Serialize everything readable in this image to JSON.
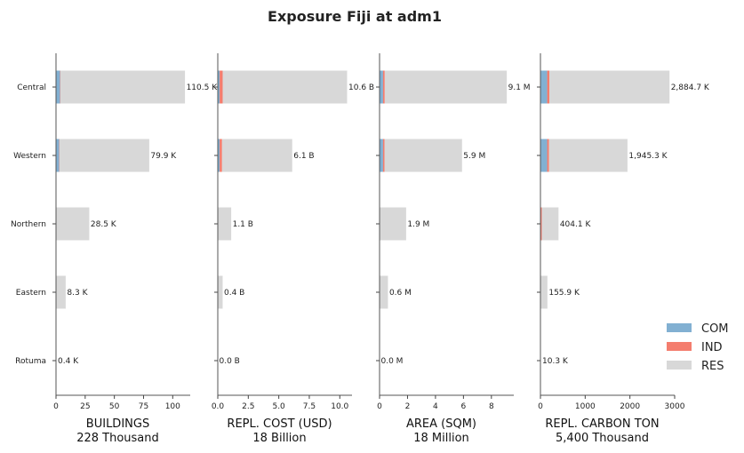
{
  "chart_data": {
    "type": "bar",
    "orientation": "horizontal",
    "stacked": true,
    "title": "Exposure Fiji at adm1",
    "categories": [
      "Central",
      "Western",
      "Northern",
      "Eastern",
      "Rotuma"
    ],
    "legend": {
      "placement": "right",
      "entries": [
        {
          "name": "COM",
          "color": "#82b0d2"
        },
        {
          "name": "IND",
          "color": "#f47d6e"
        },
        {
          "name": "RES",
          "color": "#d8d8d8"
        }
      ]
    },
    "panels": [
      {
        "xlabel": "BUILDINGS",
        "subtitle": "228 Thousand",
        "xlim": [
          0,
          115
        ],
        "xticks": [
          "0",
          "25",
          "50",
          "75",
          "100"
        ],
        "xtick_values": [
          0,
          25,
          50,
          75,
          100
        ],
        "series": [
          {
            "name": "COM",
            "values": [
              3.5,
              2.8,
              0.1,
              0.1,
              0
            ]
          },
          {
            "name": "IND",
            "values": [
              0.3,
              0.3,
              0.05,
              0,
              0
            ]
          },
          {
            "name": "RES",
            "values": [
              106.7,
              76.8,
              28.35,
              8.2,
              0.4
            ]
          }
        ],
        "labels": [
          "110.5 K",
          "79.9 K",
          "28.5 K",
          "8.3 K",
          "0.4 K"
        ]
      },
      {
        "xlabel": "REPL. COST (USD)",
        "subtitle": "18 Billion",
        "xlim": [
          0,
          11.0
        ],
        "xticks": [
          "0.0",
          "2.5",
          "5.0",
          "7.5",
          "10.0"
        ],
        "xtick_values": [
          0,
          2.5,
          5.0,
          7.5,
          10.0
        ],
        "series": [
          {
            "name": "COM",
            "values": [
              0.15,
              0.15,
              0.01,
              0.01,
              0
            ]
          },
          {
            "name": "IND",
            "values": [
              0.25,
              0.2,
              0.01,
              0,
              0
            ]
          },
          {
            "name": "RES",
            "values": [
              10.2,
              5.75,
              1.08,
              0.39,
              0.0
            ]
          }
        ],
        "labels": [
          "10.6 B",
          "6.1 B",
          "1.1 B",
          "0.4 B",
          "0.0 B"
        ]
      },
      {
        "xlabel": "AREA (SQM)",
        "subtitle": "18 Million",
        "xlim": [
          0,
          9.6
        ],
        "xticks": [
          "0",
          "2",
          "4",
          "6",
          "8"
        ],
        "xtick_values": [
          0,
          2,
          4,
          6,
          8
        ],
        "series": [
          {
            "name": "COM",
            "values": [
              0.25,
              0.25,
              0.01,
              0.01,
              0
            ]
          },
          {
            "name": "IND",
            "values": [
              0.12,
              0.1,
              0.01,
              0,
              0
            ]
          },
          {
            "name": "RES",
            "values": [
              8.73,
              5.55,
              1.88,
              0.59,
              0.0
            ]
          }
        ],
        "labels": [
          "9.1 M",
          "5.9 M",
          "1.9 M",
          "0.6 M",
          "0.0 M"
        ]
      },
      {
        "xlabel": "REPL. CARBON TON",
        "subtitle": "5,400 Thousand",
        "xlim": [
          0,
          3000
        ],
        "xticks": [
          "0",
          "1000",
          "2000",
          "3000"
        ],
        "xtick_values": [
          0,
          1000,
          2000,
          3000
        ],
        "series": [
          {
            "name": "COM",
            "values": [
              150,
              150,
              5,
              3,
              0
            ]
          },
          {
            "name": "IND",
            "values": [
              50,
              40,
              25,
              0,
              0
            ]
          },
          {
            "name": "RES",
            "values": [
              2684.7,
              1755.3,
              374.1,
              152.9,
              10.3
            ]
          }
        ],
        "labels": [
          "2,884.7 K",
          "1,945.3 K",
          "404.1 K",
          "155.9 K",
          "10.3 K"
        ]
      }
    ]
  }
}
